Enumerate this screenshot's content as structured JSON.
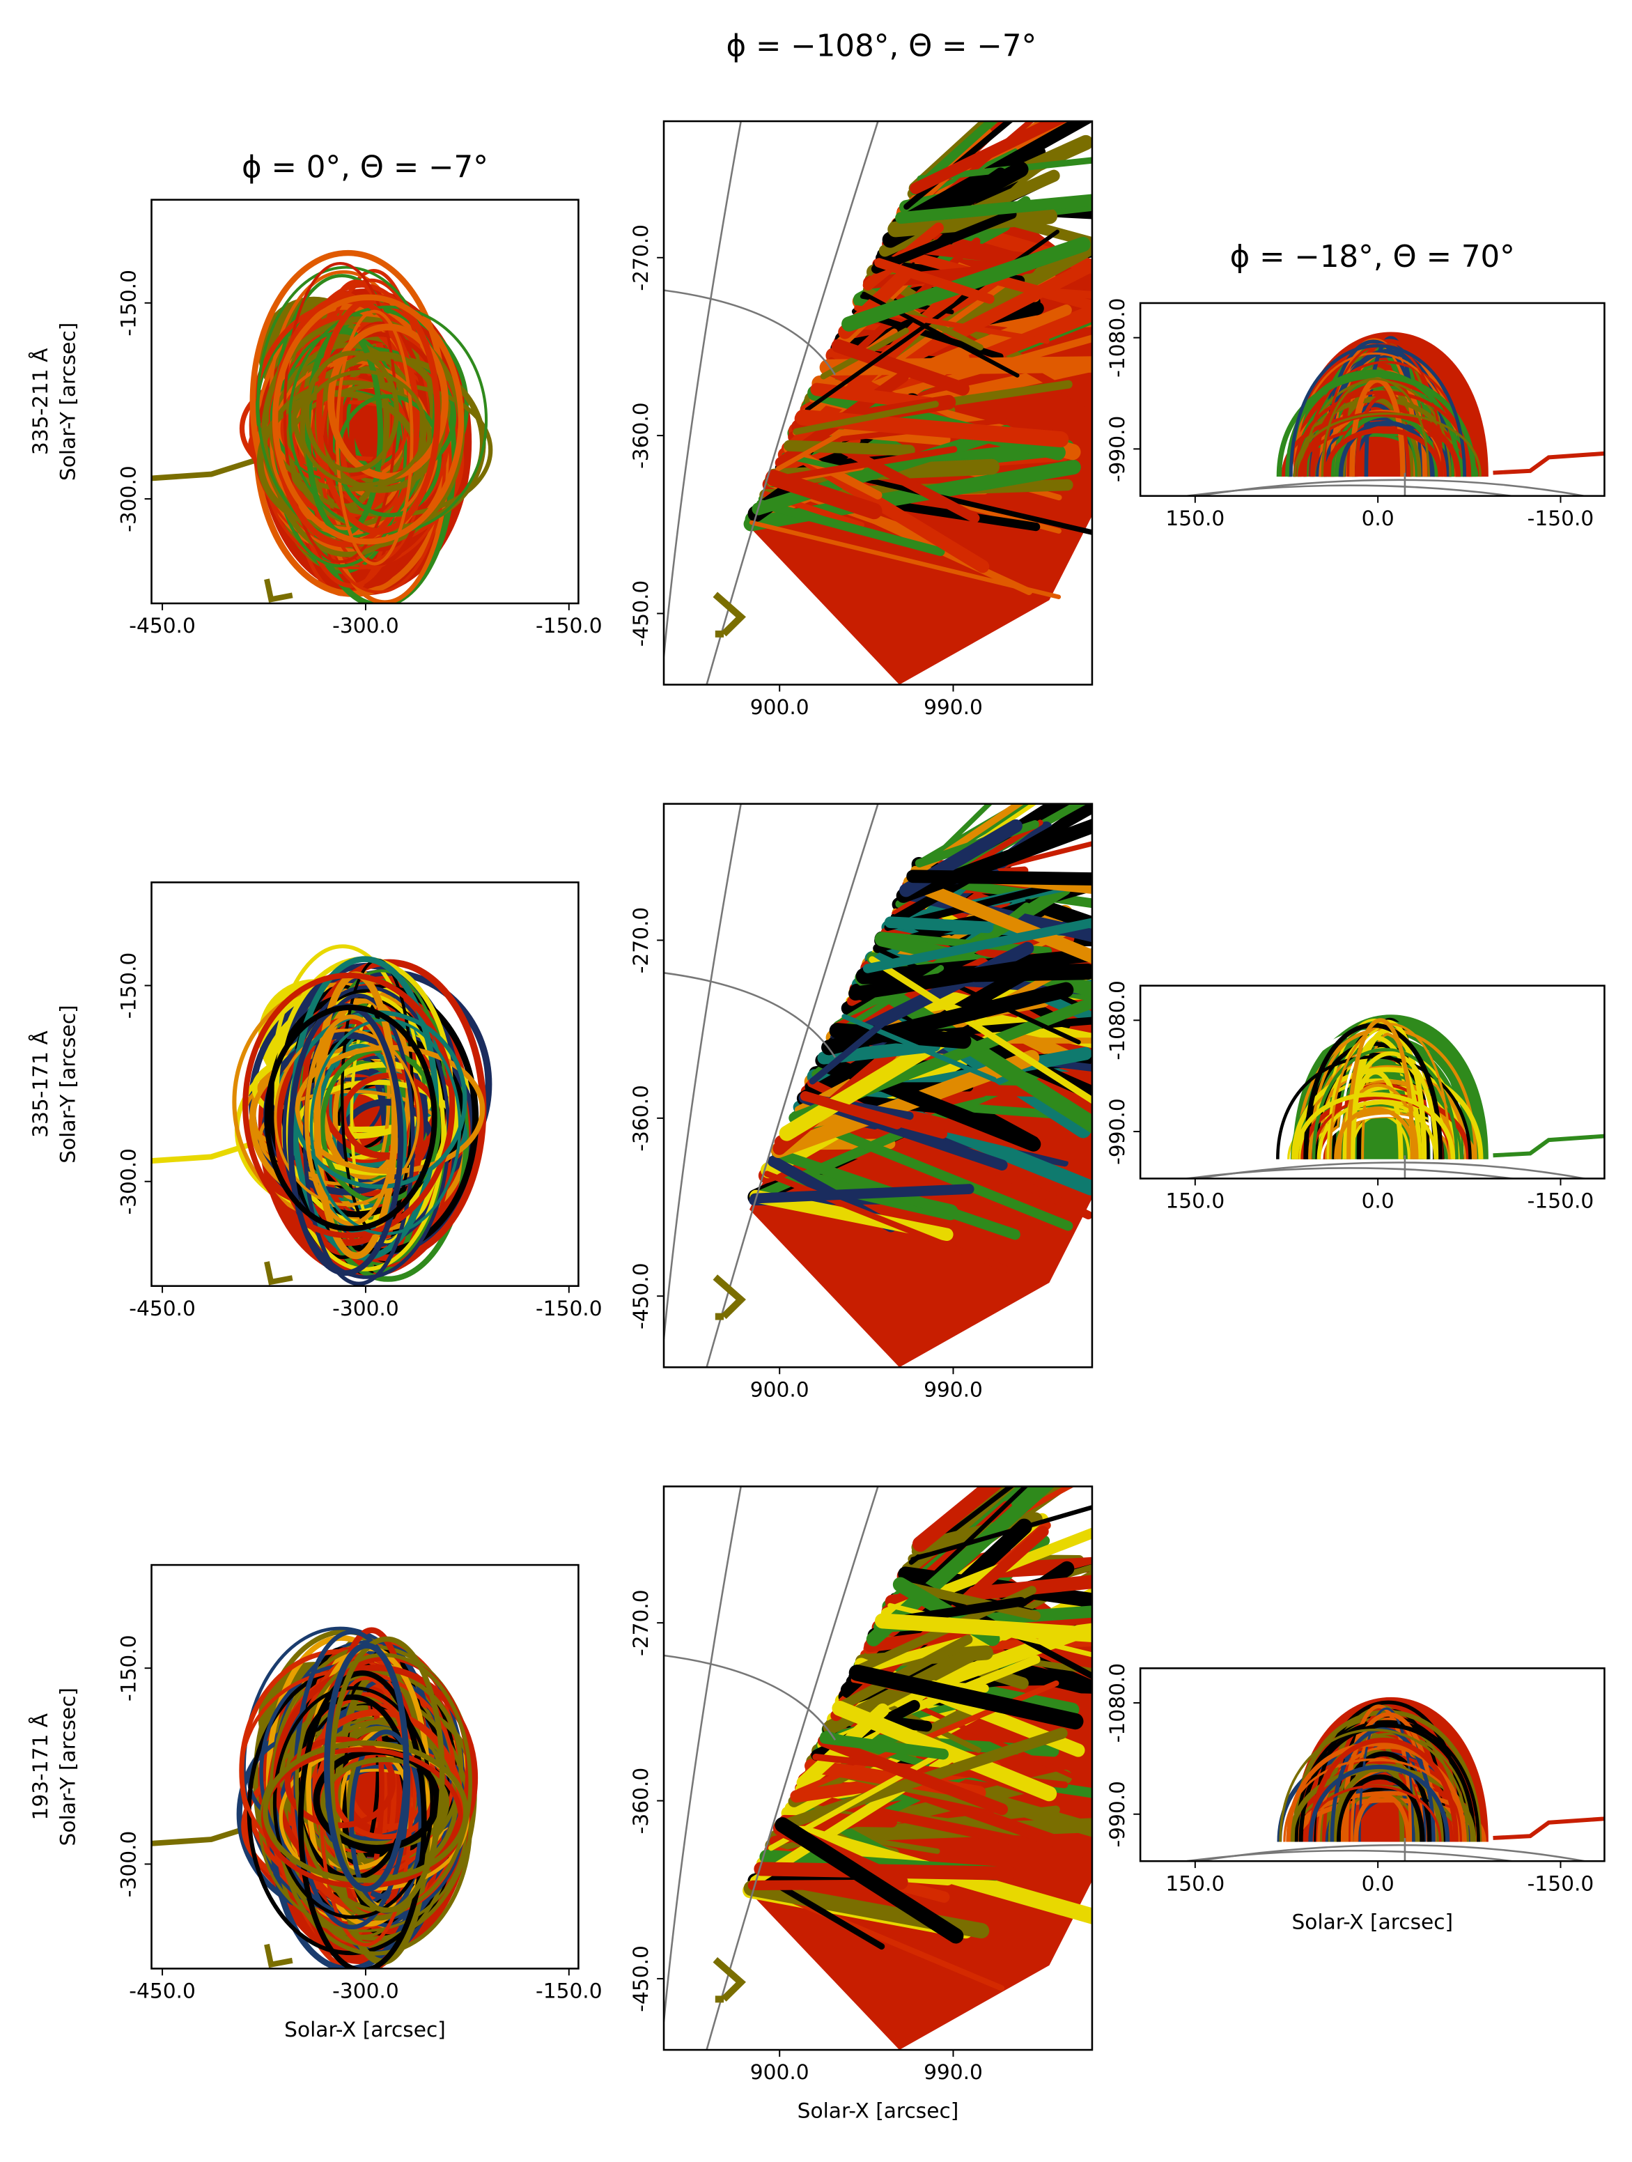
{
  "figure_title": "ϕ = −108°, Θ = −7°",
  "chart_data": [
    {
      "type": "image",
      "title": "ϕ = 0°, Θ = −7°",
      "row_label": "335-211 Å",
      "ylabel": "Solar-Y [arcsec]",
      "xlim": [
        -458,
        -143
      ],
      "ylim": [
        -380,
        -71
      ],
      "xticks": [
        {
          "value": -450,
          "label": "-450.0"
        },
        {
          "value": -300,
          "label": "-300.0"
        },
        {
          "value": -150,
          "label": "-150.0"
        }
      ],
      "yticks": [
        {
          "value": -300,
          "label": "-300.0"
        },
        {
          "value": -150,
          "label": "-150.0"
        }
      ],
      "colors": [
        "#c81e00",
        "#7a6e00",
        "#d42a00",
        "#2f8a1c",
        "#e05a00"
      ]
    },
    {
      "type": "image",
      "xlim": [
        840,
        1062
      ],
      "ylim": [
        -486,
        -201
      ],
      "xticks": [
        {
          "value": 900,
          "label": "900.0"
        },
        {
          "value": 990,
          "label": "990.0"
        }
      ],
      "yticks": [
        {
          "value": -450,
          "label": "-450.0"
        },
        {
          "value": -360,
          "label": "-360.0"
        },
        {
          "value": -270,
          "label": "-270.0"
        }
      ],
      "colors": [
        "#c81e00",
        "#7a6e00",
        "#d42a00",
        "#2f8a1c",
        "#e05a00",
        "#000000"
      ]
    },
    {
      "type": "image",
      "title": "ϕ = −18°, Θ = 70°",
      "xlim": [
        195,
        -186
      ],
      "ylim": [
        -952,
        -1108
      ],
      "xticks": [
        {
          "value": 150,
          "label": "150.0"
        },
        {
          "value": 0,
          "label": "0.0"
        },
        {
          "value": -150,
          "label": "-150.0"
        }
      ],
      "yticks": [
        {
          "value": -990,
          "label": "-990.0"
        },
        {
          "value": -1080,
          "label": "-1080.0"
        }
      ],
      "colors": [
        "#c81e00",
        "#7a6e00",
        "#2f8a1c",
        "#e05a00",
        "#1a3c6e"
      ]
    },
    {
      "type": "image",
      "row_label": "335-171 Å",
      "ylabel": "Solar-Y [arcsec]",
      "xlim": [
        -458,
        -143
      ],
      "ylim": [
        -380,
        -71
      ],
      "xticks": [
        {
          "value": -450,
          "label": "-450.0"
        },
        {
          "value": -300,
          "label": "-300.0"
        },
        {
          "value": -150,
          "label": "-150.0"
        }
      ],
      "yticks": [
        {
          "value": -300,
          "label": "-300.0"
        },
        {
          "value": -150,
          "label": "-150.0"
        }
      ],
      "colors": [
        "#c81e00",
        "#e8d800",
        "#0f7a6e",
        "#000000",
        "#e08a00",
        "#1a2c5e",
        "#2f8a1c"
      ]
    },
    {
      "type": "image",
      "xlim": [
        840,
        1062
      ],
      "ylim": [
        -486,
        -201
      ],
      "xticks": [
        {
          "value": 900,
          "label": "900.0"
        },
        {
          "value": 990,
          "label": "990.0"
        }
      ],
      "yticks": [
        {
          "value": -450,
          "label": "-450.0"
        },
        {
          "value": -360,
          "label": "-360.0"
        },
        {
          "value": -270,
          "label": "-270.0"
        }
      ],
      "colors": [
        "#c81e00",
        "#e8d800",
        "#0f7a6e",
        "#000000",
        "#e08a00",
        "#1a2c5e",
        "#2f8a1c"
      ]
    },
    {
      "type": "image",
      "xlim": [
        195,
        -186
      ],
      "ylim": [
        -952,
        -1108
      ],
      "xticks": [
        {
          "value": 150,
          "label": "150.0"
        },
        {
          "value": 0,
          "label": "0.0"
        },
        {
          "value": -150,
          "label": "-150.0"
        }
      ],
      "yticks": [
        {
          "value": -990,
          "label": "-990.0"
        },
        {
          "value": -1080,
          "label": "-1080.0"
        }
      ],
      "colors": [
        "#2f8a1c",
        "#e8d800",
        "#000000",
        "#c81e00",
        "#e08a00",
        "#ffffff"
      ]
    },
    {
      "type": "image",
      "row_label": "193-171 Å",
      "ylabel": "Solar-Y [arcsec]",
      "xlabel": "Solar-X [arcsec]",
      "xlim": [
        -458,
        -143
      ],
      "ylim": [
        -380,
        -71
      ],
      "xticks": [
        {
          "value": -450,
          "label": "-450.0"
        },
        {
          "value": -300,
          "label": "-300.0"
        },
        {
          "value": -150,
          "label": "-150.0"
        }
      ],
      "yticks": [
        {
          "value": -300,
          "label": "-300.0"
        },
        {
          "value": -150,
          "label": "-150.0"
        }
      ],
      "colors": [
        "#c81e00",
        "#7a6e00",
        "#e8a000",
        "#1a3c6e",
        "#000000",
        "#d42a00"
      ]
    },
    {
      "type": "image",
      "xlabel": "Solar-X [arcsec]",
      "xlim": [
        840,
        1062
      ],
      "ylim": [
        -486,
        -201
      ],
      "xticks": [
        {
          "value": 900,
          "label": "900.0"
        },
        {
          "value": 990,
          "label": "990.0"
        }
      ],
      "yticks": [
        {
          "value": -450,
          "label": "-450.0"
        },
        {
          "value": -360,
          "label": "-360.0"
        },
        {
          "value": -270,
          "label": "-270.0"
        }
      ],
      "colors": [
        "#c81e00",
        "#7a6e00",
        "#e8d800",
        "#000000",
        "#d42a00",
        "#2f8a1c"
      ]
    },
    {
      "type": "image",
      "xlabel": "Solar-X [arcsec]",
      "xlim": [
        195,
        -186
      ],
      "ylim": [
        -952,
        -1108
      ],
      "xticks": [
        {
          "value": 150,
          "label": "150.0"
        },
        {
          "value": 0,
          "label": "0.0"
        },
        {
          "value": -150,
          "label": "-150.0"
        }
      ],
      "yticks": [
        {
          "value": -990,
          "label": "-990.0"
        },
        {
          "value": -1080,
          "label": "-1080.0"
        }
      ],
      "colors": [
        "#c81e00",
        "#7a6e00",
        "#e05a00",
        "#1a3c6e",
        "#000000"
      ]
    }
  ]
}
